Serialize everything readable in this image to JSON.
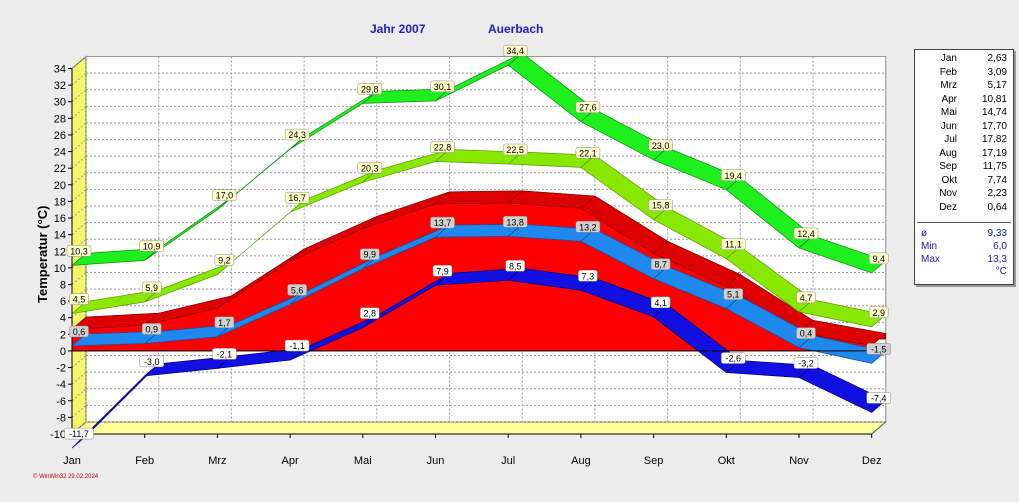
{
  "title": {
    "year": "Jahr  2007",
    "station": "Auerbach"
  },
  "footer": "© WinWin32  29.02.2024",
  "chart_data": {
    "type": "area",
    "title": "Jahr 2007 Auerbach",
    "ylabel": "Temperatur  (°C)",
    "categories": [
      "Jan",
      "Feb",
      "Mrz",
      "Apr",
      "Mai",
      "Jun",
      "Jul",
      "Aug",
      "Sep",
      "Okt",
      "Nov",
      "Dez"
    ],
    "ylim": [
      -10,
      34
    ],
    "yticks": [
      -10,
      -8,
      -6,
      -4,
      -2,
      0,
      2,
      4,
      6,
      8,
      10,
      12,
      14,
      16,
      18,
      20,
      22,
      24,
      26,
      28,
      30,
      32,
      34
    ],
    "grid": true,
    "series": [
      {
        "values": [
          10.3,
          10.9,
          17.0,
          24.3,
          29.8,
          30.1,
          34.4,
          27.6,
          23.0,
          19.4,
          12.4,
          9.4
        ],
        "labels": [
          "10,3",
          "10,9",
          "17,0",
          "24,3",
          "29,8",
          "30,1",
          "34,4",
          "27,6",
          "23,0",
          "19,4",
          "12,4",
          "9,4"
        ],
        "color": "#1ef01e"
      },
      {
        "values": [
          4.5,
          5.9,
          9.2,
          16.7,
          20.3,
          22.8,
          22.5,
          22.1,
          15.8,
          11.1,
          4.7,
          2.9
        ],
        "labels": [
          "4,5",
          "5,9",
          "9,2",
          "16,7",
          "20,3",
          "22,8",
          "22,5",
          "22,1",
          "15,8",
          "11,1",
          "4,7",
          "2,9"
        ],
        "color": "#88e800"
      },
      {
        "values": [
          0.6,
          0.9,
          1.7,
          5.6,
          9.9,
          13.7,
          13.8,
          13.2,
          8.7,
          5.1,
          0.4,
          -1.5
        ],
        "labels": [
          "0,6",
          "0,9",
          "1,7",
          "5,6",
          "9,9",
          "13,7",
          "13,8",
          "13,2",
          "8,7",
          "5,1",
          "0,4",
          "-1,5"
        ],
        "color": "#1e88ee"
      },
      {
        "values": [
          -11.7,
          -3.0,
          -2.1,
          -1.1,
          2.8,
          7.9,
          8.5,
          7.3,
          4.1,
          -2.6,
          -3.2,
          -7.4
        ],
        "labels": [
          "-11,7",
          "-3,0",
          "-2,1",
          "-1,1",
          "2,8",
          "7,9",
          "8,5",
          "7,3",
          "4,1",
          "-2,6",
          "-3,2",
          "-7,4"
        ],
        "color": "#1010e0"
      }
    ],
    "monthly_means": [
      2.63,
      3.09,
      5.17,
      10.81,
      14.74,
      17.7,
      17.82,
      17.19,
      11.75,
      7.74,
      2.23,
      0.64
    ],
    "monthly_mean_color": "#ff0000"
  },
  "side_table": {
    "rows": [
      {
        "m": "Jan",
        "v": "2,63"
      },
      {
        "m": "Feb",
        "v": "3,09"
      },
      {
        "m": "Mrz",
        "v": "5,17"
      },
      {
        "m": "Apr",
        "v": "10,81"
      },
      {
        "m": "Mai",
        "v": "14,74"
      },
      {
        "m": "Jun",
        "v": "17,70"
      },
      {
        "m": "Jul",
        "v": "17,82"
      },
      {
        "m": "Aug",
        "v": "17,19"
      },
      {
        "m": "Sep",
        "v": "11,75"
      },
      {
        "m": "Okt",
        "v": "7,74"
      },
      {
        "m": "Nov",
        "v": "2,23"
      },
      {
        "m": "Dez",
        "v": "0,64"
      }
    ],
    "avg_label": "ø",
    "avg_value": "9,33",
    "min_label": "Min",
    "min_value": "6,0",
    "max_label": "Max",
    "max_value": "13,3",
    "unit": "°C"
  }
}
